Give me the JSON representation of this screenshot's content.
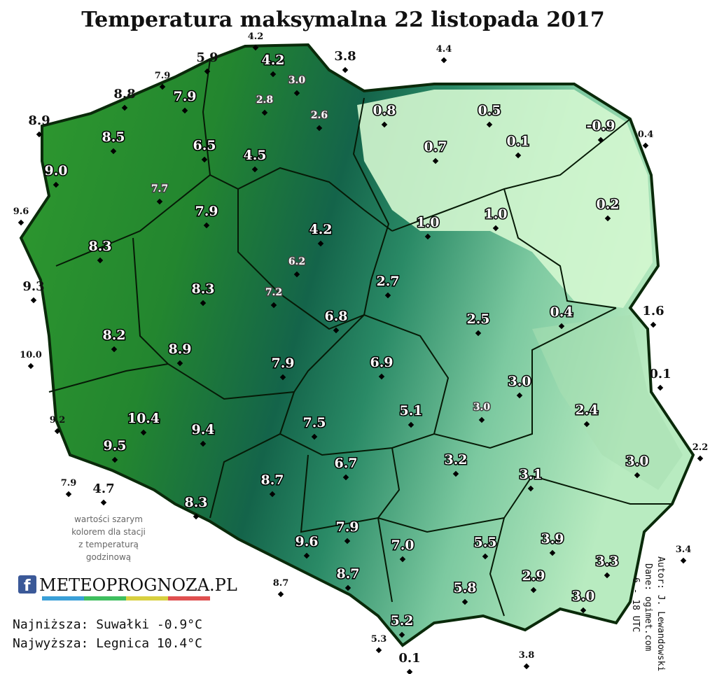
{
  "title": "Temperatura maksymalna 22 listopada 2017",
  "note": [
    "wartości szarym",
    "kolorem dla stacji",
    "z temperaturą",
    "godzinową"
  ],
  "logo": "METEOPROGNOZA.PL",
  "summary": [
    "Najniższa: Suwałki -0.9°C",
    "Najwyższa: Legnica 10.4°C"
  ],
  "credits": [
    "Autor: J. Lewandowski",
    "Dane: ogimet.com",
    "6 - 18 UTC"
  ],
  "stations": [
    {
      "value": "4.2"
    },
    {
      "value": "5.9"
    },
    {
      "value": "4.2"
    },
    {
      "value": "3.8"
    },
    {
      "value": "4.4"
    },
    {
      "value": "7.9"
    },
    {
      "value": "3.0"
    },
    {
      "value": "8.8"
    },
    {
      "value": "7.9"
    },
    {
      "value": "2.8"
    },
    {
      "value": "2.6"
    },
    {
      "value": "0.8"
    },
    {
      "value": "0.5"
    },
    {
      "value": "8.9"
    },
    {
      "value": "-0.9"
    },
    {
      "value": "8.5"
    },
    {
      "value": "6.5"
    },
    {
      "value": "0.7"
    },
    {
      "value": "0.1"
    },
    {
      "value": "0.4"
    },
    {
      "value": "4.5"
    },
    {
      "value": "9.0"
    },
    {
      "value": "7.7"
    },
    {
      "value": "0.2"
    },
    {
      "value": "9.6"
    },
    {
      "value": "7.9"
    },
    {
      "value": "1.0"
    },
    {
      "value": "1.0"
    },
    {
      "value": "4.2"
    },
    {
      "value": "8.3"
    },
    {
      "value": "6.2"
    },
    {
      "value": "9.3"
    },
    {
      "value": "2.7"
    },
    {
      "value": "8.3"
    },
    {
      "value": "7.2"
    },
    {
      "value": "0.4"
    },
    {
      "value": "1.6"
    },
    {
      "value": "6.8"
    },
    {
      "value": "2.5"
    },
    {
      "value": "8.2"
    },
    {
      "value": "10.0"
    },
    {
      "value": "8.9"
    },
    {
      "value": "6.9"
    },
    {
      "value": "7.9"
    },
    {
      "value": "0.1"
    },
    {
      "value": "3.0"
    },
    {
      "value": "9.2"
    },
    {
      "value": "10.4"
    },
    {
      "value": "5.1"
    },
    {
      "value": "3.0"
    },
    {
      "value": "2.4"
    },
    {
      "value": "9.4"
    },
    {
      "value": "7.5"
    },
    {
      "value": "9.5"
    },
    {
      "value": "2.2"
    },
    {
      "value": "3.2"
    },
    {
      "value": "3.0"
    },
    {
      "value": "6.7"
    },
    {
      "value": "7.9"
    },
    {
      "value": "4.7"
    },
    {
      "value": "3.1"
    },
    {
      "value": "8.7"
    },
    {
      "value": "8.3"
    },
    {
      "value": "7.9"
    },
    {
      "value": "9.6"
    },
    {
      "value": "7.0"
    },
    {
      "value": "5.5"
    },
    {
      "value": "3.9"
    },
    {
      "value": "3.4"
    },
    {
      "value": "3.3"
    },
    {
      "value": "8.7"
    },
    {
      "value": "8.7"
    },
    {
      "value": "2.9"
    },
    {
      "value": "5.8"
    },
    {
      "value": "3.0"
    },
    {
      "value": "5.2"
    },
    {
      "value": "5.3"
    },
    {
      "value": "3.8"
    },
    {
      "value": "0.1"
    }
  ]
}
